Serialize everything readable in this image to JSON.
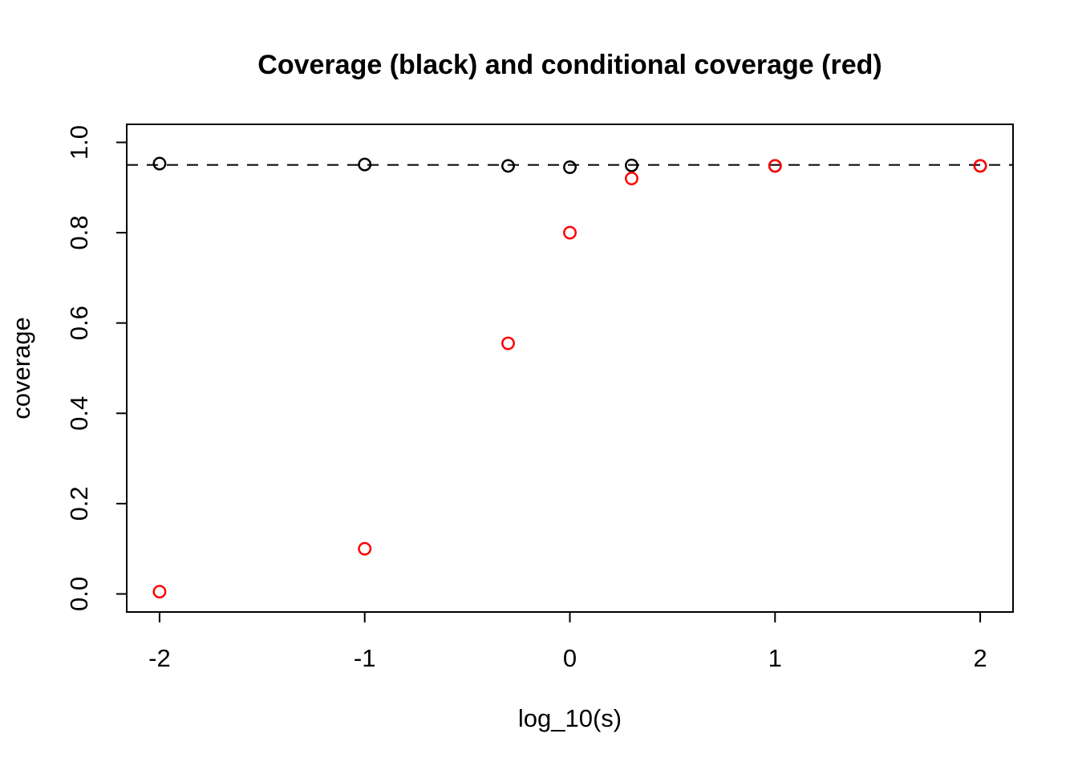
{
  "chart_data": {
    "type": "scatter",
    "title": "Coverage (black) and conditional coverage (red)",
    "xlabel": "log_10(s)",
    "ylabel": "coverage",
    "xlim": [
      -2.16,
      2.16
    ],
    "ylim": [
      -0.04,
      1.04
    ],
    "grid": false,
    "legend_position": "none",
    "x_ticks": {
      "values": [
        -2,
        -1,
        0,
        1,
        2
      ],
      "labels": [
        "-2",
        "-1",
        "0",
        "1",
        "2"
      ]
    },
    "y_ticks": {
      "values": [
        0,
        0.2,
        0.4,
        0.6,
        0.8,
        1
      ],
      "labels": [
        "0.0",
        "0.2",
        "0.4",
        "0.6",
        "0.8",
        "1.0"
      ]
    },
    "reference_line": {
      "y": 0.95,
      "style": "dashed",
      "color": "#000000"
    },
    "marker": "open-circle",
    "series": [
      {
        "name": "coverage",
        "color": "#000000",
        "points": [
          {
            "x": -2,
            "y": 0.953
          },
          {
            "x": -1,
            "y": 0.951
          },
          {
            "x": -0.301,
            "y": 0.948
          },
          {
            "x": 0,
            "y": 0.945
          },
          {
            "x": 0.301,
            "y": 0.949
          },
          {
            "x": 1,
            "y": 0.948
          },
          {
            "x": 2,
            "y": 0.948
          }
        ]
      },
      {
        "name": "conditional coverage",
        "color": "#FF0000",
        "points": [
          {
            "x": -2,
            "y": 0.005
          },
          {
            "x": -1,
            "y": 0.1
          },
          {
            "x": -0.301,
            "y": 0.555
          },
          {
            "x": 0,
            "y": 0.8
          },
          {
            "x": 0.301,
            "y": 0.92
          },
          {
            "x": 1,
            "y": 0.948
          },
          {
            "x": 2,
            "y": 0.948
          }
        ]
      }
    ]
  }
}
